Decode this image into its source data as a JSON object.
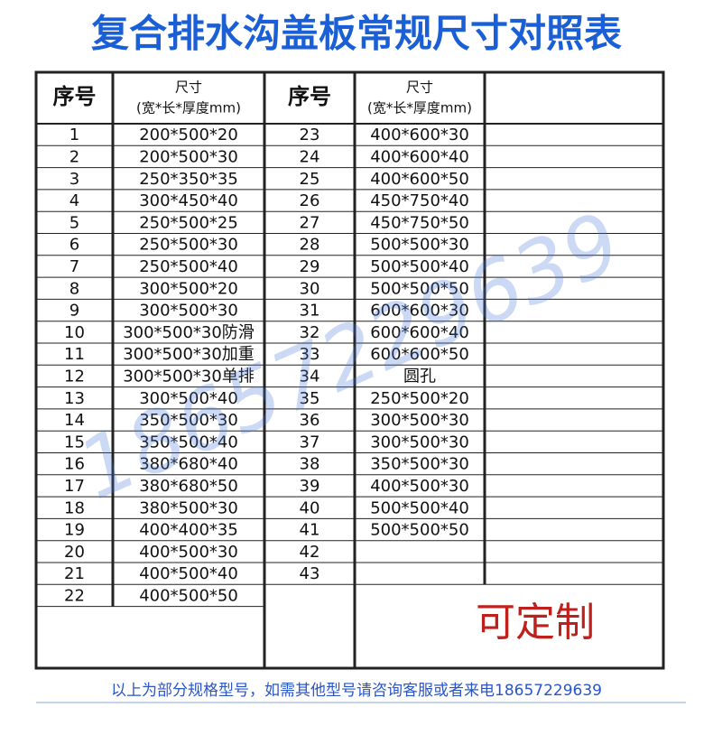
{
  "header": {
    "title": "复合排水沟盖板常规尺寸对照表"
  },
  "table": {
    "columns": {
      "no": "序号",
      "size": "尺寸",
      "size_unit": "(宽*长*厚度mm)"
    },
    "left_rows": [
      [
        "1",
        "200*500*20"
      ],
      [
        "2",
        "200*500*30"
      ],
      [
        "3",
        "250*350*35"
      ],
      [
        "4",
        "300*450*40"
      ],
      [
        "5",
        "250*500*25"
      ],
      [
        "6",
        "250*500*30"
      ],
      [
        "7",
        "250*500*40"
      ],
      [
        "8",
        "300*500*20"
      ],
      [
        "9",
        "300*500*30"
      ],
      [
        "10",
        "300*500*30防滑"
      ],
      [
        "11",
        "300*500*30加重"
      ],
      [
        "12",
        "300*500*30单排"
      ],
      [
        "13",
        "300*500*40"
      ],
      [
        "14",
        "350*500*30"
      ],
      [
        "15",
        "350*500*40"
      ],
      [
        "16",
        "380*680*40"
      ],
      [
        "17",
        "380*680*50"
      ],
      [
        "18",
        "380*500*30"
      ],
      [
        "19",
        "400*400*35"
      ],
      [
        "20",
        "400*500*30"
      ],
      [
        "21",
        "400*500*40"
      ],
      [
        "22",
        "400*500*50"
      ]
    ],
    "right_rows": [
      [
        "23",
        "400*600*30"
      ],
      [
        "24",
        "400*600*40"
      ],
      [
        "25",
        "400*600*50"
      ],
      [
        "26",
        "450*750*40"
      ],
      [
        "27",
        "450*750*50"
      ],
      [
        "28",
        "500*500*30"
      ],
      [
        "29",
        "500*500*40"
      ],
      [
        "30",
        "500*500*50"
      ],
      [
        "31",
        "600*600*30"
      ],
      [
        "32",
        "600*600*40"
      ],
      [
        "33",
        "600*600*50"
      ],
      [
        "34",
        "圆孔"
      ],
      [
        "35",
        "250*500*20"
      ],
      [
        "36",
        "300*500*30"
      ],
      [
        "37",
        "300*500*30"
      ],
      [
        "38",
        "350*500*30"
      ],
      [
        "39",
        "400*500*30"
      ],
      [
        "40",
        "500*500*40"
      ],
      [
        "41",
        "500*500*50"
      ],
      [
        "42"
      ],
      [
        "43"
      ]
    ],
    "custom": "可定制"
  },
  "watermark": "18657229639",
  "footer": {
    "note": "以上为部分规格型号，如需其他型号请咨询客服或者来电18657229639"
  }
}
